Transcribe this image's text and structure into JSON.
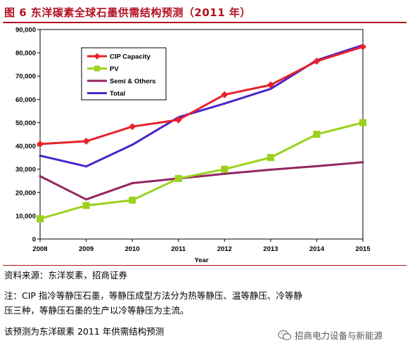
{
  "figure_title": "图 6  东洋碳素全球石墨供需结构预测（2011 年）",
  "source_note": "资料来源：东洋炭素，招商证券",
  "note_line1": "注：CIP 指冷等静压石墨，等静压成型方法分为热等静压、温等静压、冷等静",
  "note_line2": "压三种，等静压石墨的生产以冷等静压为主流。",
  "note_line3": "该预测为东洋碳素 2011 年供需结构预测",
  "watermark_text": "招商电力设备与新能源",
  "watermark_icon": "wechat-icon",
  "chart_data": {
    "type": "line",
    "xlabel": "Year",
    "ylabel": "",
    "x": [
      2008,
      2009,
      2010,
      2011,
      2012,
      2013,
      2014,
      2015
    ],
    "ylim": [
      0,
      90000
    ],
    "yticks": [
      "0",
      "10,000",
      "20,000",
      "30,000",
      "40,000",
      "50,000",
      "60,000",
      "70,000",
      "80,000",
      "90,000"
    ],
    "grid": false,
    "legend_position": "top-left",
    "series": [
      {
        "name": "CIP Capacity",
        "color": "#e8212a",
        "marker": "diamond",
        "values": [
          40800,
          42000,
          48300,
          51200,
          62000,
          66200,
          76400,
          82600
        ]
      },
      {
        "name": "PV",
        "color": "#9ad21e",
        "marker": "square",
        "values": [
          8700,
          14400,
          16700,
          26000,
          30000,
          35000,
          45000,
          50000
        ]
      },
      {
        "name": "Semi & Others",
        "color": "#93265f",
        "marker": "none",
        "values": [
          27000,
          17000,
          24000,
          26000,
          28000,
          29800,
          31300,
          33000
        ]
      },
      {
        "name": "Total",
        "color": "#4a24c8",
        "marker": "none",
        "values": [
          35800,
          31200,
          40500,
          52300,
          58200,
          64500,
          76800,
          83300
        ]
      }
    ]
  }
}
